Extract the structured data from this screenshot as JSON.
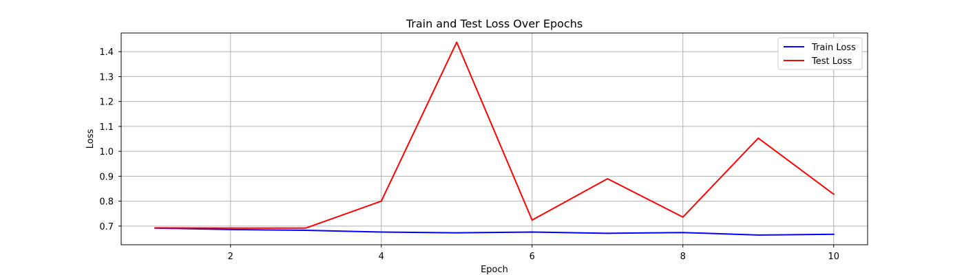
{
  "chart_data": {
    "type": "line",
    "title": "Train and Test Loss Over Epochs",
    "xlabel": "Epoch",
    "ylabel": "Loss",
    "xlim": [
      0.55,
      10.45
    ],
    "ylim": [
      0.625,
      1.475
    ],
    "x_ticks": [
      2,
      4,
      6,
      8,
      10
    ],
    "y_ticks": [
      0.7,
      0.8,
      0.9,
      1.0,
      1.1,
      1.2,
      1.3,
      1.4
    ],
    "x_tick_labels": [
      "2",
      "4",
      "6",
      "8",
      "10"
    ],
    "y_tick_labels": [
      "0.7",
      "0.8",
      "0.9",
      "1.0",
      "1.1",
      "1.2",
      "1.3",
      "1.4"
    ],
    "grid": true,
    "legend": {
      "position": "top-right",
      "entries": [
        "Train Loss",
        "Test Loss"
      ]
    },
    "x": [
      1,
      2,
      3,
      4,
      5,
      6,
      7,
      8,
      9,
      10
    ],
    "series": [
      {
        "name": "Train Loss",
        "color": "#0000ff",
        "values": [
          0.692,
          0.686,
          0.683,
          0.676,
          0.673,
          0.676,
          0.671,
          0.674,
          0.664,
          0.667
        ]
      },
      {
        "name": "Test Loss",
        "color": "#ff0000",
        "values": [
          0.693,
          0.692,
          0.692,
          0.8,
          1.438,
          0.724,
          0.89,
          0.736,
          1.053,
          0.828
        ]
      }
    ]
  }
}
